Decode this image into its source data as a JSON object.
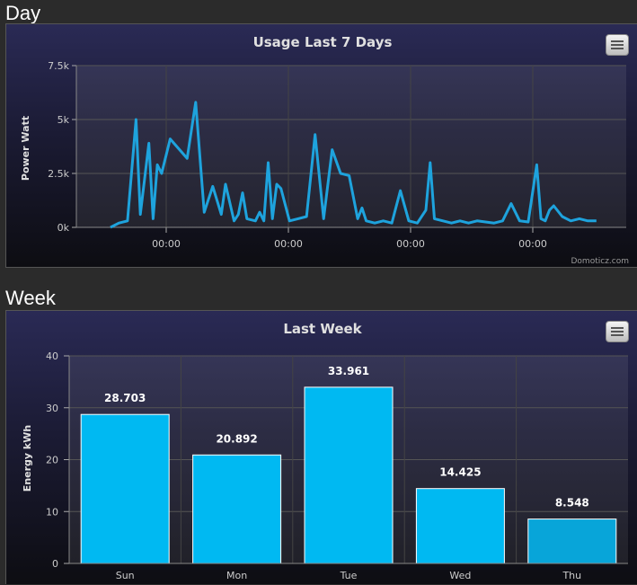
{
  "sections": {
    "day": "Day",
    "week": "Week"
  },
  "menu_icon": "hamburger-menu-icon",
  "colors": {
    "line": "#1ea3dd",
    "bar": "#00b9f2",
    "bar_last": "#08a5d9"
  },
  "chart_data": [
    {
      "type": "line",
      "title": "Usage Last 7 Days",
      "xlabel": "",
      "ylabel": "Power Watt",
      "ylim": [
        0,
        7500
      ],
      "yticks": [
        "0k",
        "2.5k",
        "5k",
        "7.5k"
      ],
      "xticks": [
        "00:00",
        "00:00",
        "00:00",
        "00:00"
      ],
      "credit": "Domoticz.com",
      "series": [
        {
          "x": [
            0,
            0.1,
            0.2,
            0.3,
            0.35,
            0.45,
            0.5,
            0.55,
            0.6,
            0.7,
            0.9,
            1.0,
            1.1,
            1.2,
            1.3,
            1.35,
            1.45,
            1.5,
            1.55,
            1.6,
            1.7,
            1.75,
            1.8,
            1.85,
            1.9,
            1.95,
            2.0,
            2.1,
            2.2,
            2.3,
            2.4,
            2.5,
            2.6,
            2.7,
            2.8,
            2.9,
            2.95,
            3.0,
            3.1,
            3.2,
            3.3,
            3.4,
            3.5,
            3.6,
            3.7,
            3.75,
            3.8,
            3.9,
            4.0,
            4.1,
            4.2,
            4.3,
            4.4,
            4.5,
            4.6,
            4.7,
            4.8,
            4.9,
            5.0,
            5.05,
            5.1,
            5.15,
            5.2,
            5.3,
            5.4,
            5.5,
            5.6,
            5.7
          ],
          "y": [
            0,
            200,
            300,
            5000,
            600,
            3900,
            400,
            2900,
            2500,
            4100,
            3200,
            5800,
            700,
            1900,
            600,
            2000,
            300,
            600,
            1600,
            400,
            300,
            700,
            300,
            3000,
            400,
            2000,
            1800,
            300,
            400,
            500,
            4300,
            400,
            3600,
            2500,
            2400,
            400,
            900,
            300,
            200,
            300,
            200,
            1700,
            300,
            200,
            800,
            3000,
            400,
            300,
            200,
            300,
            200,
            300,
            250,
            200,
            300,
            1100,
            300,
            250,
            2900,
            400,
            300,
            800,
            1000,
            500,
            300,
            400,
            300,
            300
          ]
        }
      ]
    },
    {
      "type": "bar",
      "title": "Last Week",
      "xlabel": "",
      "ylabel": "Energy kWh",
      "ylim": [
        0,
        40
      ],
      "yticks": [
        "0",
        "10",
        "20",
        "30",
        "40"
      ],
      "categories": [
        "Sun",
        "Mon",
        "Tue",
        "Wed",
        "Thu"
      ],
      "values": [
        28.703,
        20.892,
        33.961,
        14.425,
        8.548
      ],
      "labels": [
        "28.703",
        "20.892",
        "33.961",
        "14.425",
        "8.548"
      ]
    }
  ]
}
